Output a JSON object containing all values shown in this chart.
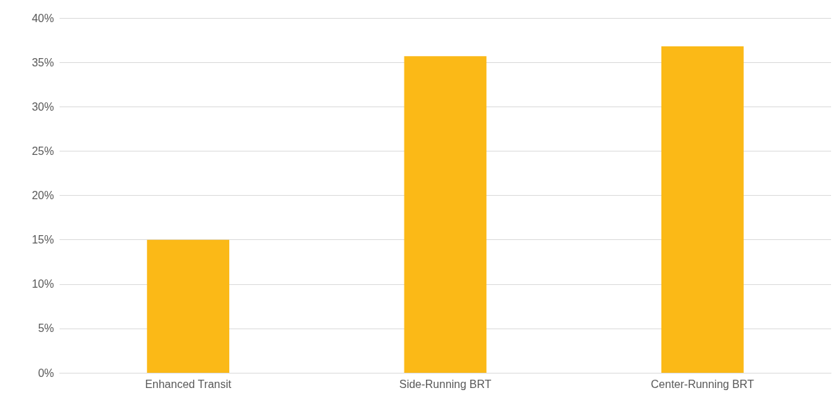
{
  "chart_data": {
    "type": "bar",
    "categories": [
      "Enhanced Transit",
      "Side-Running BRT",
      "Center-Running BRT"
    ],
    "values": [
      15.0,
      35.7,
      36.8
    ],
    "color": "#fbb917",
    "ylim": [
      0,
      40
    ],
    "yticks": [
      {
        "value": 0,
        "label": "0%"
      },
      {
        "value": 5,
        "label": "5%"
      },
      {
        "value": 10,
        "label": "10%"
      },
      {
        "value": 15,
        "label": "15%"
      },
      {
        "value": 20,
        "label": "20%"
      },
      {
        "value": 25,
        "label": "25%"
      },
      {
        "value": 30,
        "label": "30%"
      },
      {
        "value": 35,
        "label": "35%"
      },
      {
        "value": 40,
        "label": "40%"
      }
    ],
    "grid": "y"
  }
}
